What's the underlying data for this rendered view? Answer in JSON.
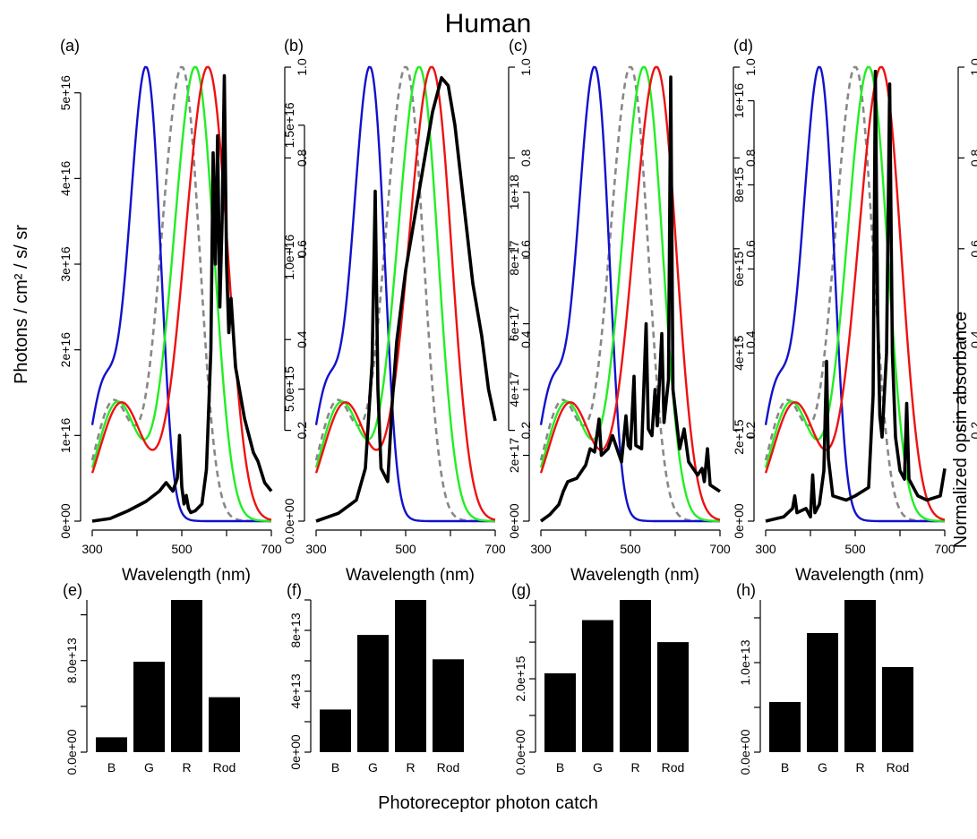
{
  "title": "Human",
  "left_axis_label": "Photons / cm² / s/ sr",
  "right_axis_label": "Normalized opsin absorbance",
  "bottom_label": "Photoreceptor photon catch",
  "colors": {
    "B": "#1111cc",
    "G": "#22ee22",
    "R": "#ee1111",
    "Rod": "#888888",
    "spectrum": "#000000",
    "bar": "#000000"
  },
  "chart_data": [
    {
      "type": "line",
      "panel": "(a)",
      "xlabel": "Wavelength (nm)",
      "xticks": [
        300,
        500,
        700
      ],
      "xlim": [
        300,
        700
      ],
      "ylim": [
        0,
        5.3e+16
      ],
      "yticks": [
        "0e+00",
        "1e+16",
        "2e+16",
        "3e+16",
        "4e+16",
        "5e+16"
      ],
      "ytick_values": [
        0,
        1e+16,
        2e+16,
        3e+16,
        4e+16,
        5e+16
      ],
      "right_yticks": [
        "0.2",
        "0.4",
        "0.6",
        "0.8",
        "1.0"
      ],
      "opsin_peaks": {
        "B": 420,
        "G": 530,
        "R": 558,
        "Rod": 500
      },
      "spectrum": [
        [
          300,
          0
        ],
        [
          340,
          300000000000000.0
        ],
        [
          380,
          1200000000000000.0
        ],
        [
          420,
          2300000000000000.0
        ],
        [
          450,
          3500000000000000.0
        ],
        [
          465,
          4500000000000000.0
        ],
        [
          480,
          3500000000000000.0
        ],
        [
          490,
          5000000000000000.0
        ],
        [
          495,
          1e+16
        ],
        [
          500,
          4000000000000000.0
        ],
        [
          505,
          2000000000000000.0
        ],
        [
          510,
          3000000000000000.0
        ],
        [
          515,
          1500000000000000.0
        ],
        [
          520,
          1000000000000000.0
        ],
        [
          530,
          1200000000000000.0
        ],
        [
          545,
          2000000000000000.0
        ],
        [
          555,
          6000000000000000.0
        ],
        [
          565,
          2e+16
        ],
        [
          570,
          4.3e+16
        ],
        [
          575,
          3e+16
        ],
        [
          580,
          4.5e+16
        ],
        [
          585,
          2.5e+16
        ],
        [
          590,
          3.5e+16
        ],
        [
          595,
          5.2e+16
        ],
        [
          600,
          3e+16
        ],
        [
          605,
          2.2e+16
        ],
        [
          610,
          2.6e+16
        ],
        [
          620,
          1.8e+16
        ],
        [
          640,
          1.2e+16
        ],
        [
          660,
          8000000000000000.0
        ],
        [
          670,
          7000000000000000.0
        ],
        [
          685,
          4500000000000000.0
        ],
        [
          700,
          3500000000000000.0
        ]
      ]
    },
    {
      "type": "line",
      "panel": "(b)",
      "xlabel": "Wavelength (nm)",
      "xticks": [
        300,
        500,
        700
      ],
      "xlim": [
        300,
        700
      ],
      "ylim": [
        0,
        1.72e+16
      ],
      "yticks": [
        "0.0e+00",
        "5.0e+15",
        "1.0e+16",
        "1.5e+16"
      ],
      "ytick_values": [
        0,
        5000000000000000.0,
        1e+16,
        1.5e+16
      ],
      "right_yticks": [
        "0.2",
        "0.4",
        "0.6",
        "0.8",
        "1.0"
      ],
      "opsin_peaks": {
        "B": 420,
        "G": 530,
        "R": 558,
        "Rod": 500
      },
      "spectrum": [
        [
          300,
          0
        ],
        [
          350,
          300000000000000.0
        ],
        [
          390,
          800000000000000.0
        ],
        [
          410,
          2000000000000000.0
        ],
        [
          425,
          6000000000000000.0
        ],
        [
          432,
          1.25e+16
        ],
        [
          438,
          5000000000000000.0
        ],
        [
          445,
          2000000000000000.0
        ],
        [
          460,
          1500000000000000.0
        ],
        [
          470,
          4500000000000000.0
        ],
        [
          480,
          6800000000000000.0
        ],
        [
          500,
          9500000000000000.0
        ],
        [
          520,
          1.15e+16
        ],
        [
          540,
          1.35e+16
        ],
        [
          560,
          1.55e+16
        ],
        [
          580,
          1.68e+16
        ],
        [
          595,
          1.65e+16
        ],
        [
          610,
          1.5e+16
        ],
        [
          630,
          1.2e+16
        ],
        [
          650,
          9000000000000000.0
        ],
        [
          670,
          7000000000000000.0
        ],
        [
          685,
          5000000000000000.0
        ],
        [
          700,
          3800000000000000.0
        ]
      ]
    },
    {
      "type": "line",
      "panel": "(c)",
      "xlabel": "Wavelength (nm)",
      "xticks": [
        300,
        500,
        700
      ],
      "xlim": [
        300,
        700
      ],
      "ylim": [
        0,
        1.38e+18
      ],
      "yticks": [
        "0e+00",
        "2e+17",
        "4e+17",
        "6e+17",
        "8e+17",
        "1e+18"
      ],
      "ytick_values": [
        0,
        2e+17,
        4e+17,
        6e+17,
        8e+17,
        1e+18
      ],
      "right_yticks": [
        "0.2",
        "0.4",
        "0.6",
        "0.8",
        "1.0"
      ],
      "opsin_peaks": {
        "B": 420,
        "G": 530,
        "R": 558,
        "Rod": 500
      },
      "spectrum": [
        [
          300,
          0
        ],
        [
          320,
          2e+16
        ],
        [
          340,
          5e+16
        ],
        [
          350,
          9e+16
        ],
        [
          360,
          1.2e+17
        ],
        [
          380,
          1.3e+17
        ],
        [
          400,
          1.7e+17
        ],
        [
          410,
          2.2e+17
        ],
        [
          420,
          2.1e+17
        ],
        [
          430,
          3.1e+17
        ],
        [
          435,
          2e+17
        ],
        [
          450,
          2.2e+17
        ],
        [
          460,
          2.6e+17
        ],
        [
          470,
          2.2e+17
        ],
        [
          480,
          1.8e+17
        ],
        [
          490,
          3.2e+17
        ],
        [
          495,
          2.3e+17
        ],
        [
          500,
          2.2e+17
        ],
        [
          508,
          4.4e+17
        ],
        [
          512,
          2.3e+17
        ],
        [
          525,
          2.2e+17
        ],
        [
          535,
          6e+17
        ],
        [
          540,
          2.8e+17
        ],
        [
          548,
          2.6e+17
        ],
        [
          555,
          4e+17
        ],
        [
          560,
          2.9e+17
        ],
        [
          570,
          5.7e+17
        ],
        [
          575,
          3e+17
        ],
        [
          585,
          4.3e+17
        ],
        [
          590,
          1.35e+18
        ],
        [
          595,
          4e+17
        ],
        [
          610,
          2.2e+17
        ],
        [
          620,
          2.8e+17
        ],
        [
          630,
          1.8e+17
        ],
        [
          650,
          1.4e+17
        ],
        [
          660,
          1.6e+17
        ],
        [
          665,
          1.2e+17
        ],
        [
          672,
          2.2e+17
        ],
        [
          678,
          1.1e+17
        ],
        [
          700,
          9e+16
        ]
      ]
    },
    {
      "type": "line",
      "panel": "(d)",
      "xlabel": "Wavelength (nm)",
      "xticks": [
        300,
        500,
        700
      ],
      "xlim": [
        300,
        700
      ],
      "ylim": [
        0,
        1.08e+16
      ],
      "yticks": [
        "0e+00",
        "2e+15",
        "4e+15",
        "6e+15",
        "8e+15",
        "1e+16"
      ],
      "ytick_values": [
        0,
        2000000000000000.0,
        4000000000000000.0,
        6000000000000000.0,
        8000000000000000.0,
        1e+16
      ],
      "right_yticks": [
        "0.2",
        "0.4",
        "0.6",
        "0.8",
        "1.0"
      ],
      "opsin_peaks": {
        "B": 420,
        "G": 530,
        "R": 558,
        "Rod": 500
      },
      "spectrum": [
        [
          300,
          0
        ],
        [
          340,
          100000000000000.0
        ],
        [
          360,
          300000000000000.0
        ],
        [
          365,
          600000000000000.0
        ],
        [
          370,
          200000000000000.0
        ],
        [
          390,
          300000000000000.0
        ],
        [
          400,
          100000000000000.0
        ],
        [
          405,
          1100000000000000.0
        ],
        [
          410,
          200000000000000.0
        ],
        [
          420,
          400000000000000.0
        ],
        [
          430,
          1200000000000000.0
        ],
        [
          436,
          3800000000000000.0
        ],
        [
          440,
          1500000000000000.0
        ],
        [
          450,
          600000000000000.0
        ],
        [
          480,
          500000000000000.0
        ],
        [
          500,
          600000000000000.0
        ],
        [
          530,
          800000000000000.0
        ],
        [
          540,
          3000000000000000.0
        ],
        [
          545,
          1.07e+16
        ],
        [
          550,
          5000000000000000.0
        ],
        [
          555,
          2500000000000000.0
        ],
        [
          560,
          2000000000000000.0
        ],
        [
          570,
          4000000000000000.0
        ],
        [
          577,
          1.04e+16
        ],
        [
          583,
          4000000000000000.0
        ],
        [
          590,
          2000000000000000.0
        ],
        [
          600,
          1200000000000000.0
        ],
        [
          610,
          1000000000000000.0
        ],
        [
          615,
          2800000000000000.0
        ],
        [
          620,
          1000000000000000.0
        ],
        [
          640,
          600000000000000.0
        ],
        [
          660,
          500000000000000.0
        ],
        [
          690,
          600000000000000.0
        ],
        [
          700,
          1250000000000000.0
        ]
      ]
    },
    {
      "type": "bar",
      "panel": "(e)",
      "categories": [
        "B",
        "G",
        "R",
        "Rod"
      ],
      "values": [
        13000000000000.0,
        79000000000000.0,
        133000000000000.0,
        48000000000000.0
      ],
      "ylim": [
        0,
        133000000000000.0
      ],
      "yticks": [
        "0.0e+00",
        "8.0e+13"
      ],
      "ytick_values": [
        0,
        80000000000000.0
      ]
    },
    {
      "type": "bar",
      "panel": "(f)",
      "categories": [
        "B",
        "G",
        "R",
        "Rod"
      ],
      "values": [
        28000000000000.0,
        77000000000000.0,
        100000000000000.0,
        61000000000000.0
      ],
      "ylim": [
        0,
        100000000000000.0
      ],
      "yticks": [
        "0e+00",
        "4e+13",
        "8e+13"
      ],
      "ytick_values": [
        0,
        40000000000000.0,
        80000000000000.0
      ]
    },
    {
      "type": "bar",
      "panel": "(g)",
      "categories": [
        "B",
        "G",
        "R",
        "Rod"
      ],
      "values": [
        2150000000000000.0,
        3600000000000000.0,
        4150000000000000.0,
        3000000000000000.0
      ],
      "ylim": [
        0,
        4150000000000000.0
      ],
      "yticks": [
        "0.0e+00",
        "2.0e+15"
      ],
      "ytick_values": [
        0,
        2000000000000000.0
      ]
    },
    {
      "type": "bar",
      "panel": "(h)",
      "categories": [
        "B",
        "G",
        "R",
        "Rod"
      ],
      "values": [
        5600000000000.0,
        13300000000000.0,
        17000000000000.0,
        9500000000000.0
      ],
      "ylim": [
        0,
        17000000000000.0
      ],
      "yticks": [
        "0.0e+00",
        "1.0e+13"
      ],
      "ytick_values": [
        0,
        10000000000000.0
      ]
    }
  ]
}
